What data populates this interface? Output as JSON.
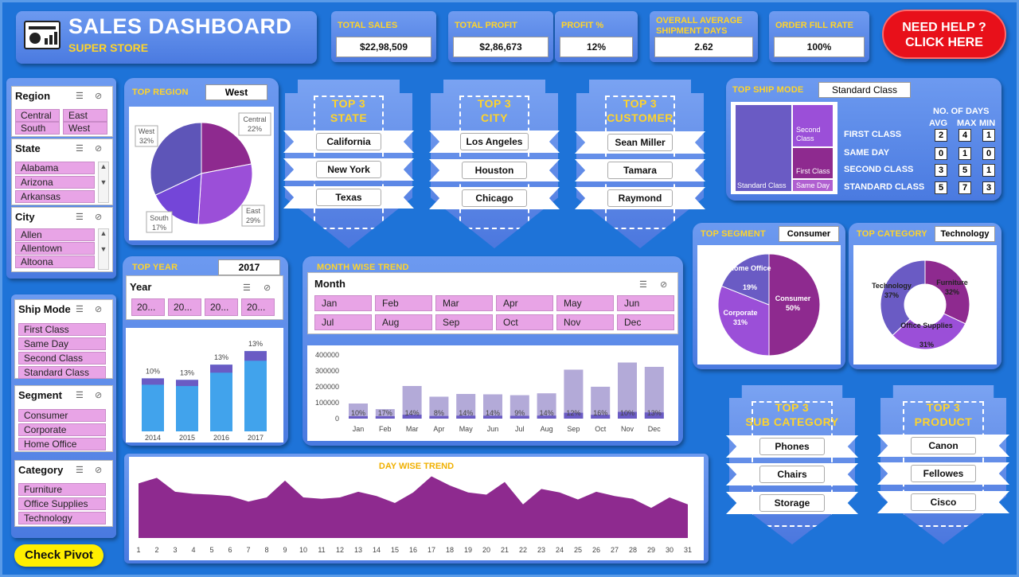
{
  "header": {
    "title": "SALES DASHBOARD",
    "subtitle": "SUPER STORE"
  },
  "kpis": [
    {
      "label": "TOTAL SALES",
      "value": "$22,98,509"
    },
    {
      "label": "TOTAL PROFIT",
      "value": "$2,86,673"
    },
    {
      "label": "PROFIT %",
      "value": "12%"
    },
    {
      "label": "OVERALL AVERAGE SHIPMENT DAYS",
      "value": "2.62"
    },
    {
      "label": "ORDER FILL RATE",
      "value": "100%"
    }
  ],
  "help": {
    "line1": "NEED HELP ?",
    "line2": "CLICK HERE"
  },
  "slicers": {
    "region": {
      "title": "Region",
      "items": [
        "Central",
        "East",
        "South",
        "West"
      ]
    },
    "state": {
      "title": "State",
      "items": [
        "Alabama",
        "Arizona",
        "Arkansas"
      ]
    },
    "city": {
      "title": "City",
      "items": [
        "Allen",
        "Allentown",
        "Altoona"
      ]
    },
    "ship_mode": {
      "title": "Ship Mode",
      "items": [
        "First Class",
        "Same Day",
        "Second Class",
        "Standard Class"
      ]
    },
    "segment": {
      "title": "Segment",
      "items": [
        "Consumer",
        "Corporate",
        "Home Office"
      ]
    },
    "category": {
      "title": "Category",
      "items": [
        "Furniture",
        "Office Supplies",
        "Technology"
      ]
    },
    "year": {
      "title": "Year",
      "items": [
        "20...",
        "20...",
        "20...",
        "20..."
      ]
    },
    "month": {
      "title": "Month",
      "items": [
        "Jan",
        "Feb",
        "Mar",
        "Apr",
        "May",
        "Jun",
        "Jul",
        "Aug",
        "Sep",
        "Oct",
        "Nov",
        "Dec"
      ]
    }
  },
  "check_pivot": "Check Pivot",
  "top_region": {
    "title": "TOP REGION",
    "value": "West"
  },
  "top_year": {
    "title": "TOP YEAR",
    "value": "2017"
  },
  "month_trend_title": "MONTH WISE TREND",
  "day_trend_title": "DAY WISE TREND",
  "top3": {
    "state": {
      "title1": "TOP 3",
      "title2": "STATE",
      "items": [
        "California",
        "New York",
        "Texas"
      ]
    },
    "city": {
      "title1": "TOP 3",
      "title2": "CITY",
      "items": [
        "Los Angeles",
        "Houston",
        "Chicago"
      ]
    },
    "customer": {
      "title1": "TOP 3",
      "title2": "CUSTOMER",
      "items": [
        "Sean Miller",
        "Tamara",
        "Raymond"
      ]
    },
    "sub_category": {
      "title1": "TOP 3",
      "title2": "SUB CATEGORY",
      "items": [
        "Phones",
        "Chairs",
        "Storage"
      ]
    },
    "product": {
      "title1": "TOP 3",
      "title2": "PRODUCT",
      "items": [
        "Canon",
        "Fellowes",
        "Cisco"
      ]
    }
  },
  "ship_mode": {
    "title": "TOP SHIP MODE",
    "value": "Standard Class",
    "days_header": "NO. OF DAYS",
    "cols": [
      "AVG",
      "MAX",
      "MIN"
    ],
    "rows": [
      {
        "name": "FIRST CLASS",
        "avg": "2",
        "max": "4",
        "min": "1"
      },
      {
        "name": "SAME DAY",
        "avg": "0",
        "max": "1",
        "min": "0"
      },
      {
        "name": "SECOND CLASS",
        "avg": "3",
        "max": "5",
        "min": "1"
      },
      {
        "name": "STANDARD CLASS",
        "avg": "5",
        "max": "7",
        "min": "3"
      }
    ],
    "treemap": {
      "standard": "Standard Class",
      "second": "Second Class",
      "first": "First Class",
      "same": "Same Day"
    }
  },
  "top_segment": {
    "title": "TOP SEGMENT",
    "value": "Consumer"
  },
  "top_category": {
    "title": "TOP CATEGORY",
    "value": "Technology"
  },
  "colors": {
    "bg": "#1e73d8",
    "panel": "#5b87e6",
    "accent": "#ffd42a",
    "chip": "#e8a4e6",
    "purple": "#8e2a8f",
    "bar": "#41a3ec",
    "help": "#e8101a"
  },
  "chart_data": [
    {
      "type": "pie",
      "title": "TOP REGION",
      "slices": [
        {
          "label": "Central",
          "pct": "22%",
          "value": 22
        },
        {
          "label": "East",
          "pct": "29%",
          "value": 29
        },
        {
          "label": "South",
          "pct": "17%",
          "value": 17
        },
        {
          "label": "West",
          "pct": "32%",
          "value": 32
        }
      ]
    },
    {
      "type": "bar",
      "title": "TOP YEAR",
      "categories": [
        "2014",
        "2015",
        "2016",
        "2017"
      ],
      "values": [
        484247,
        470533,
        609206,
        733215
      ],
      "labels": [
        "10%",
        "13%",
        "13%",
        "13%"
      ],
      "ylim": [
        0,
        800000
      ]
    },
    {
      "type": "bar",
      "title": "MONTH WISE TREND",
      "categories": [
        "Jan",
        "Feb",
        "Mar",
        "Apr",
        "May",
        "Jun",
        "Jul",
        "Aug",
        "Sep",
        "Oct",
        "Nov",
        "Dec"
      ],
      "values": [
        94925,
        59751,
        205005,
        137762,
        155029,
        152718,
        147238,
        159044,
        307649,
        200323,
        352461,
        325293
      ],
      "labels": [
        "10%",
        "17%",
        "14%",
        "8%",
        "14%",
        "14%",
        "9%",
        "14%",
        "12%",
        "16%",
        "10%",
        "13%"
      ],
      "yticks": [
        "0",
        "100000",
        "200000",
        "300000",
        "400000"
      ],
      "ylim": [
        0,
        400000
      ]
    },
    {
      "type": "area",
      "title": "DAY WISE TREND",
      "x": [
        "1",
        "2",
        "3",
        "4",
        "5",
        "6",
        "7",
        "8",
        "9",
        "10",
        "11",
        "12",
        "13",
        "14",
        "15",
        "16",
        "17",
        "18",
        "19",
        "20",
        "21",
        "22",
        "23",
        "24",
        "25",
        "26",
        "27",
        "28",
        "29",
        "30",
        "31"
      ],
      "values": [
        78,
        86,
        66,
        63,
        62,
        60,
        52,
        58,
        82,
        58,
        56,
        58,
        66,
        60,
        50,
        65,
        88,
        75,
        65,
        62,
        80,
        48,
        70,
        65,
        55,
        66,
        60,
        56,
        43,
        58,
        48
      ]
    },
    {
      "type": "pie",
      "title": "TOP SEGMENT",
      "slices": [
        {
          "label": "Consumer",
          "pct": "50%",
          "value": 50
        },
        {
          "label": "Corporate",
          "pct": "31%",
          "value": 31
        },
        {
          "label": "Home Office",
          "pct": "19%",
          "value": 19
        }
      ]
    },
    {
      "type": "pie",
      "title": "TOP CATEGORY",
      "donut": true,
      "slices": [
        {
          "label": "Furniture",
          "pct": "32%",
          "value": 32
        },
        {
          "label": "Office Supplies",
          "pct": "31%",
          "value": 31
        },
        {
          "label": "Technology",
          "pct": "37%",
          "value": 37
        }
      ]
    }
  ]
}
